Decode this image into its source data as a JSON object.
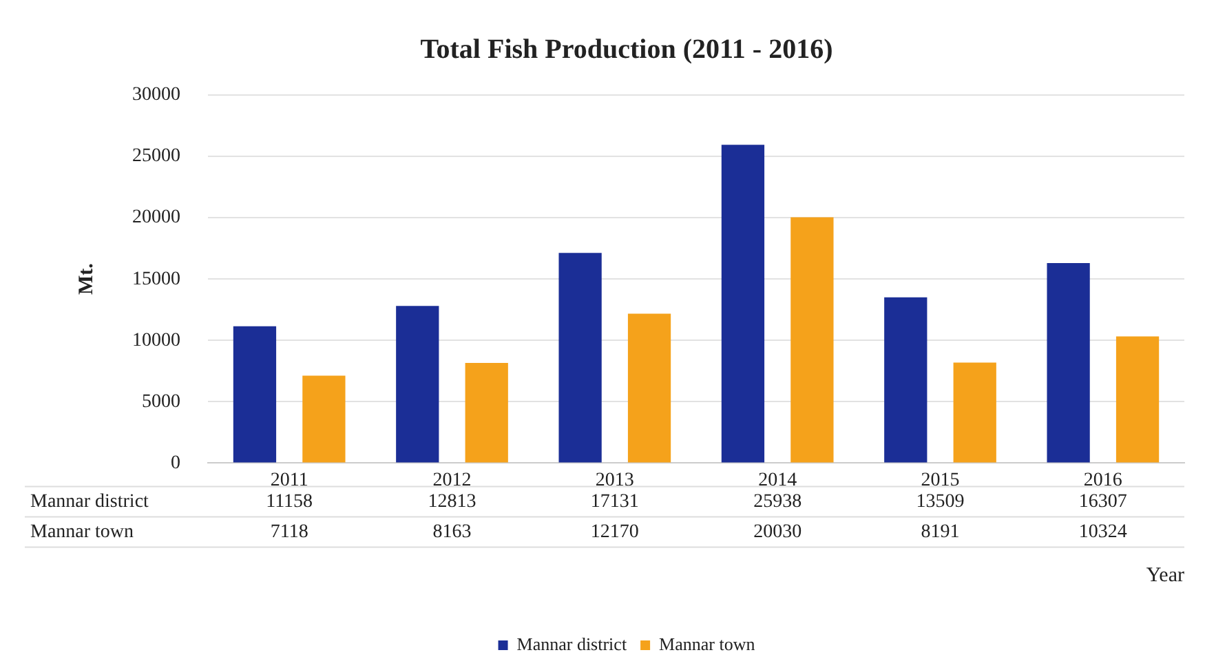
{
  "chart_data": {
    "type": "bar",
    "title": "Total Fish Production (2011 - 2016)",
    "ylabel": "Mt.",
    "xlabel": "Year",
    "categories": [
      "2011",
      "2012",
      "2013",
      "2014",
      "2015",
      "2016"
    ],
    "series": [
      {
        "name": "Mannar district",
        "color": "#1b2e96",
        "values": [
          11158,
          12813,
          17131,
          25938,
          13509,
          16307
        ]
      },
      {
        "name": "Mannar town",
        "color": "#f5a21b",
        "values": [
          7118,
          8163,
          12170,
          20030,
          8191,
          10324
        ]
      }
    ],
    "ylim": [
      0,
      30000
    ],
    "yticks": [
      0,
      5000,
      10000,
      15000,
      20000,
      25000,
      30000
    ],
    "grid": "y",
    "legend": "bottom",
    "data_labels": true
  }
}
